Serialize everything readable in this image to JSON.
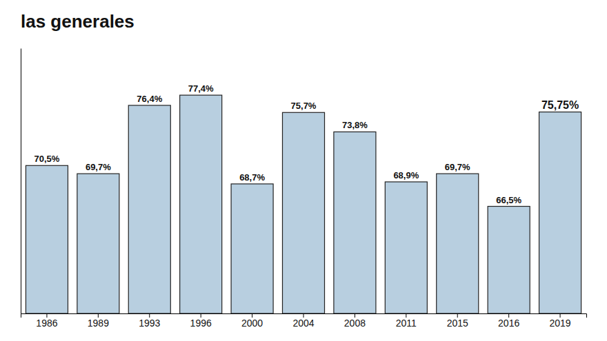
{
  "chart_data": {
    "type": "bar",
    "title": "las generales",
    "categories": [
      "1986",
      "1989",
      "1993",
      "1996",
      "2000",
      "2004",
      "2008",
      "2011",
      "2015",
      "2016",
      "2019"
    ],
    "values": [
      70.5,
      69.7,
      76.4,
      77.4,
      68.7,
      75.7,
      73.8,
      68.9,
      69.7,
      66.5,
      75.75
    ],
    "value_labels": [
      "70,5%",
      "69,7%",
      "76,4%",
      "77,4%",
      "68,7%",
      "75,7%",
      "73,8%",
      "68,9%",
      "69,7%",
      "66,5%",
      "75,75%"
    ],
    "color": "#b8cfe0",
    "ylim": [
      56,
      82
    ],
    "grid": false,
    "data_labels": true,
    "tick_labels": "x"
  }
}
